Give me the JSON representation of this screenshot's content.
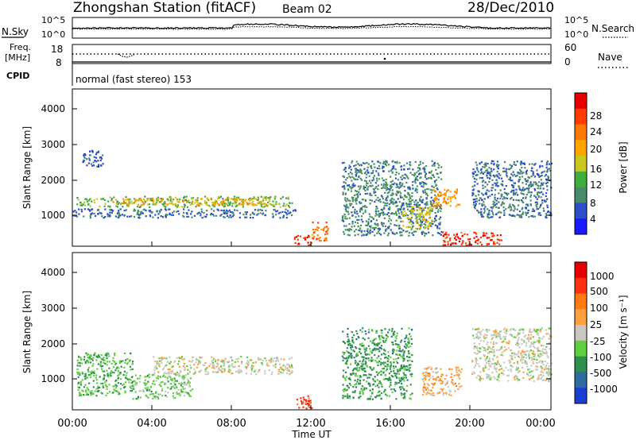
{
  "header": {
    "title": "Zhongshan Station (fitACF)",
    "beam": "Beam 02",
    "date": "28/Dec/2010",
    "mode": "normal (fast stereo) 153"
  },
  "top_panels": {
    "nsky_label": "N.Sky",
    "nsearch_label": "N.Search",
    "freq_label_1": "Freq.",
    "freq_label_2": "[MHz]",
    "cpid_label": "CPID",
    "nave_label": "Nave",
    "noise_ticks": [
      "10^5",
      "10^0"
    ],
    "freq_ticks": [
      "18",
      "8"
    ],
    "nave_ticks": [
      "60",
      "0"
    ]
  },
  "x_axis": {
    "label": "Time UT",
    "ticks": [
      "00:00",
      "04:00",
      "08:00",
      "12:00",
      "16:00",
      "20:00",
      "00:00"
    ]
  },
  "power_panel": {
    "ylabel": "Slant Range [km]",
    "yticks": [
      "1000",
      "2000",
      "3000",
      "4000"
    ],
    "cbar_label": "Power [dB]",
    "cbar_ticks": [
      "4",
      "8",
      "12",
      "16",
      "20",
      "24",
      "28"
    ],
    "cbar_colors": [
      "#1a1aff",
      "#2a4fc8",
      "#4a8a6a",
      "#3fae3f",
      "#c8c820",
      "#ffa500",
      "#ff7a00",
      "#ff3c00",
      "#e60000"
    ]
  },
  "velocity_panel": {
    "ylabel": "Slant Range [km]",
    "yticks": [
      "1000",
      "2000",
      "3000",
      "4000"
    ],
    "cbar_label": "Velocity [m s⁻¹]",
    "cbar_ticks": [
      "1000",
      "500",
      "100",
      "25",
      "-25",
      "-100",
      "-500",
      "-1000"
    ],
    "cbar_colors": [
      "#1a3fd0",
      "#2f6aa0",
      "#2f8f4f",
      "#5fcf3f",
      "#c8c8c0",
      "#ffa040",
      "#ff7a10",
      "#ff3010",
      "#e60000"
    ]
  },
  "chart_data": {
    "type": "heatmap",
    "xlabel": "Time UT",
    "ylabel": "Slant Range [km]",
    "xlim": [
      0,
      24
    ],
    "ylim": [
      180,
      4600
    ],
    "power_clim": [
      0,
      30
    ],
    "velocity_clim": [
      -1000,
      1000
    ],
    "series": [
      {
        "name": "Power [dB]",
        "regions": [
          {
            "t": [
              0.2,
              11.0
            ],
            "r": [
              1300,
              1600
            ],
            "v": 12
          },
          {
            "t": [
              2.0,
              10.0
            ],
            "r": [
              1350,
              1550
            ],
            "v": 18
          },
          {
            "t": [
              0.0,
              11.2
            ],
            "r": [
              1000,
              1250
            ],
            "v": 6
          },
          {
            "t": [
              0.5,
              1.5
            ],
            "r": [
              2400,
              2900
            ],
            "v": 5
          },
          {
            "t": [
              11.1,
              12.0
            ],
            "r": [
              220,
              500
            ],
            "v": 26
          },
          {
            "t": [
              12.0,
              12.8
            ],
            "r": [
              350,
              900
            ],
            "v": 22
          },
          {
            "t": [
              13.5,
              18.5
            ],
            "r": [
              500,
              2600
            ],
            "v": 8
          },
          {
            "t": [
              16.5,
              18.0
            ],
            "r": [
              700,
              1300
            ],
            "v": 16
          },
          {
            "t": [
              18.0,
              19.5
            ],
            "r": [
              1300,
              1800
            ],
            "v": 20
          },
          {
            "t": [
              18.5,
              21.5
            ],
            "r": [
              220,
              600
            ],
            "v": 26
          },
          {
            "t": [
              20.0,
              24.0
            ],
            "r": [
              1000,
              2600
            ],
            "v": 7
          }
        ]
      },
      {
        "name": "Velocity [m s-1]",
        "regions": [
          {
            "t": [
              0.2,
              3.0
            ],
            "r": [
              600,
              1800
            ],
            "v": -300
          },
          {
            "t": [
              3.0,
              6.0
            ],
            "r": [
              500,
              1200
            ],
            "v": -200
          },
          {
            "t": [
              4.0,
              11.0
            ],
            "r": [
              1200,
              1700
            ],
            "v": 0
          },
          {
            "t": [
              11.2,
              12.0
            ],
            "r": [
              220,
              600
            ],
            "v": 700
          },
          {
            "t": [
              13.5,
              17.0
            ],
            "r": [
              500,
              2500
            ],
            "v": -400
          },
          {
            "t": [
              17.5,
              19.5
            ],
            "r": [
              600,
              1400
            ],
            "v": 200
          },
          {
            "t": [
              20.0,
              24.0
            ],
            "r": [
              1000,
              2500
            ],
            "v": 0
          }
        ]
      }
    ]
  }
}
